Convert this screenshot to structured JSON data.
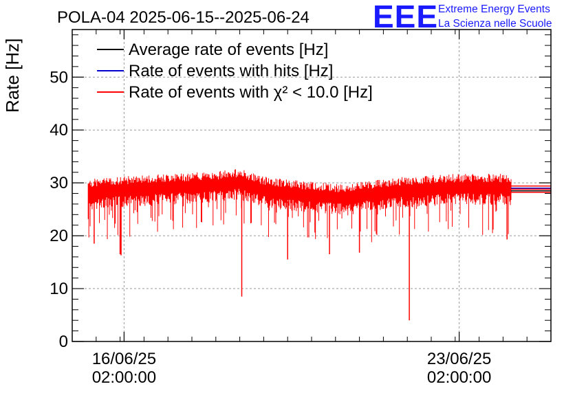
{
  "title": "POLA-04 2025-06-15--2025-06-24",
  "logo": {
    "mark": "EEE",
    "line1": "Extreme Energy Events",
    "line2": "La Scienza nelle Scuole",
    "color": "#1a1aff"
  },
  "chart_data": {
    "type": "line",
    "ylabel": "Rate [Hz]",
    "xlabel": "",
    "ylim": [
      0,
      59
    ],
    "yticks": [
      0,
      10,
      20,
      30,
      40,
      50
    ],
    "x_range": [
      "2025-06-15 00:00",
      "2025-06-25 00:00"
    ],
    "xticks": [
      {
        "date": "2025-06-16 02:00",
        "label_line1": "16/06/25",
        "label_line2": "02:00:00"
      },
      {
        "date": "2025-06-23 02:00",
        "label_line1": "23/06/25",
        "label_line2": "02:00:00"
      }
    ],
    "grid": true,
    "legend_position": "top-left",
    "series": [
      {
        "name": "Average rate of events [Hz]",
        "color": "#000000",
        "x": [
          "2025-06-24 04:00",
          "2025-06-25 00:00"
        ],
        "values": [
          28.5,
          28.5
        ]
      },
      {
        "name": "Rate of events with hits [Hz]",
        "color": "#0000cc",
        "x": [
          "2025-06-24 04:00",
          "2025-06-25 00:00"
        ],
        "values": [
          29.0,
          29.0
        ]
      },
      {
        "name": "Rate of events with χ² < 10.0 [Hz]",
        "color": "#ff0000",
        "x": [
          "2025-06-15 08:00",
          "2025-06-16 00:00",
          "2025-06-17 00:00",
          "2025-06-18 00:00",
          "2025-06-18 12:00",
          "2025-06-19 00:00",
          "2025-06-20 00:00",
          "2025-06-20 18:00",
          "2025-06-21 00:00",
          "2025-06-22 00:00",
          "2025-06-23 00:00",
          "2025-06-24 00:00",
          "2025-06-24 04:00"
        ],
        "values": [
          28.5,
          29.0,
          29.5,
          30.0,
          30.5,
          29.0,
          28.0,
          27.5,
          28.0,
          29.0,
          29.5,
          29.5,
          29.0
        ]
      }
    ],
    "dips": [
      {
        "x": "2025-06-15 11:00",
        "value": 18.5
      },
      {
        "x": "2025-06-16 00:00",
        "value": 16.5
      },
      {
        "x": "2025-06-16 00:30",
        "value": 16.3
      },
      {
        "x": "2025-06-18 13:00",
        "value": 8.5
      },
      {
        "x": "2025-06-19 12:00",
        "value": 15.5
      },
      {
        "x": "2025-06-20 09:00",
        "value": 16.5
      },
      {
        "x": "2025-06-21 00:00",
        "value": 16.8
      },
      {
        "x": "2025-06-22 01:00",
        "value": 4.0
      },
      {
        "x": "2025-06-24 02:00",
        "value": 19.3
      }
    ]
  }
}
